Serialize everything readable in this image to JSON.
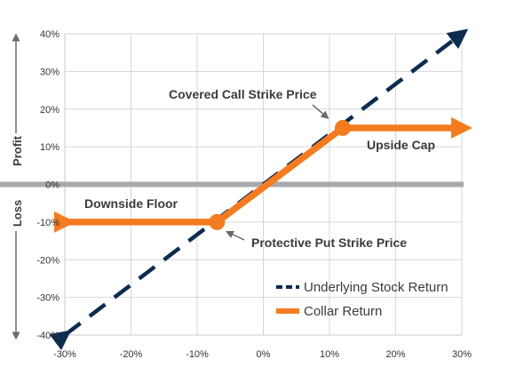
{
  "chart_data": {
    "type": "line",
    "x_ticks": [
      "-30%",
      "-20%",
      "-10%",
      "0%",
      "10%",
      "20%",
      "30%"
    ],
    "y_ticks": [
      "40%",
      "30%",
      "20%",
      "10%",
      "0%",
      "-10%",
      "-20%",
      "-30%",
      "-40%"
    ],
    "xlim": [
      -30,
      30
    ],
    "ylim": [
      -40,
      40
    ],
    "grid": true,
    "legend_position": "bottom-right",
    "y_axis_words": {
      "upper": "Profit",
      "lower": "Loss"
    },
    "series": [
      {
        "name": "Underlying Stock Return",
        "style": "dashed-arrow",
        "color": "#0d2d4f",
        "x": [
          -30,
          30
        ],
        "y": [
          -40,
          40
        ]
      },
      {
        "name": "Collar Return",
        "style": "solid-arrow",
        "color": "#f47b20",
        "x": [
          -30,
          -7,
          12,
          30
        ],
        "y": [
          -10,
          -10,
          15,
          15
        ]
      }
    ],
    "markers": [
      {
        "x": -7,
        "y": -10,
        "color": "#f47b20"
      },
      {
        "x": 12,
        "y": 15,
        "color": "#f47b20"
      }
    ],
    "annotations": [
      {
        "text": "Covered Call Strike Price",
        "target_x": 12,
        "target_y": 15
      },
      {
        "text": "Upside Cap"
      },
      {
        "text": "Downside Floor"
      },
      {
        "text": "Protective Put Strike Price",
        "target_x": -7,
        "target_y": -10
      }
    ]
  }
}
